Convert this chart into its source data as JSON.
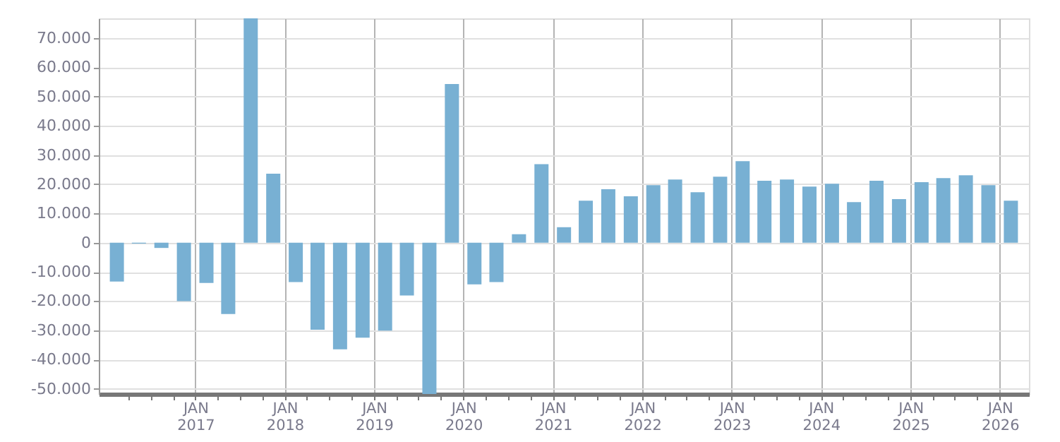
{
  "chart_data": {
    "type": "bar",
    "x": [
      "2016-02-15",
      "2016-05-15",
      "2016-08-15",
      "2016-11-15",
      "2017-02-15",
      "2017-05-15",
      "2017-08-15",
      "2017-11-15",
      "2018-02-15",
      "2018-05-15",
      "2018-08-15",
      "2018-11-15",
      "2019-02-15",
      "2019-05-15",
      "2019-08-15",
      "2019-11-15",
      "2020-02-15",
      "2020-05-15",
      "2020-08-15",
      "2020-11-15",
      "2021-02-15",
      "2021-05-15",
      "2021-08-15",
      "2021-11-15",
      "2022-02-15",
      "2022-05-15",
      "2022-08-15",
      "2022-11-15",
      "2023-02-15",
      "2023-05-15",
      "2023-08-15",
      "2023-11-15",
      "2024-02-15",
      "2024-05-15",
      "2024-08-15",
      "2024-11-15",
      "2025-02-15",
      "2025-05-15",
      "2025-08-15",
      "2025-11-15",
      "2026-02-15"
    ],
    "values": [
      -13300,
      -300,
      -1800,
      -20000,
      -13800,
      -24400,
      76800,
      23600,
      -13500,
      -29800,
      -36500,
      -32500,
      -30100,
      -18100,
      -51800,
      54300,
      -14300,
      -13500,
      2900,
      26900,
      5300,
      14400,
      18300,
      15900,
      19700,
      21600,
      17300,
      22600,
      27900,
      21200,
      21600,
      19200,
      20200,
      13900,
      21200,
      14900,
      20700,
      22100,
      23100,
      19700,
      14400
    ],
    "color": "#78b0d3",
    "ylim": [
      -51800,
      76800
    ],
    "yticks": [
      {
        "value": -50000,
        "label": "-50.000"
      },
      {
        "value": -40000,
        "label": "-40.000"
      },
      {
        "value": -30000,
        "label": "-30.000"
      },
      {
        "value": -20000,
        "label": "-20.000"
      },
      {
        "value": -10000,
        "label": "-10.000"
      },
      0,
      {
        "value": 10000,
        "label": "10.000"
      },
      {
        "value": 20000,
        "label": "20.000"
      },
      {
        "value": 30000,
        "label": "30.000"
      },
      {
        "value": 40000,
        "label": "40.000"
      },
      {
        "value": 50000,
        "label": "50.000"
      },
      {
        "value": 60000,
        "label": "60.000"
      },
      {
        "value": 70000,
        "label": "70.000"
      }
    ],
    "xlim": [
      "2016-01",
      "2026-04"
    ],
    "xticks": [
      {
        "value": "2016-04",
        "label": null
      },
      {
        "value": "2016-07",
        "label": null
      },
      {
        "value": "2016-10",
        "label": null
      },
      {
        "value": "2017-01",
        "label": "JAN\n2017"
      },
      {
        "value": "2017-04",
        "label": null
      },
      {
        "value": "2017-07",
        "label": null
      },
      {
        "value": "2017-10",
        "label": null
      },
      {
        "value": "2018-01",
        "label": "JAN\n2018"
      },
      {
        "value": "2018-04",
        "label": null
      },
      {
        "value": "2018-07",
        "label": null
      },
      {
        "value": "2018-10",
        "label": null
      },
      {
        "value": "2019-01",
        "label": "JAN\n2019"
      },
      {
        "value": "2019-04",
        "label": null
      },
      {
        "value": "2019-07",
        "label": null
      },
      {
        "value": "2019-10",
        "label": null
      },
      {
        "value": "2020-01",
        "label": "JAN\n2020"
      },
      {
        "value": "2020-04",
        "label": null
      },
      {
        "value": "2020-07",
        "label": null
      },
      {
        "value": "2020-10",
        "label": null
      },
      {
        "value": "2021-01",
        "label": "JAN\n2021"
      },
      {
        "value": "2021-04",
        "label": null
      },
      {
        "value": "2021-07",
        "label": null
      },
      {
        "value": "2021-10",
        "label": null
      },
      {
        "value": "2022-01",
        "label": "JAN\n2022"
      },
      {
        "value": "2022-04",
        "label": null
      },
      {
        "value": "2022-07",
        "label": null
      },
      {
        "value": "2022-10",
        "label": null
      },
      {
        "value": "2023-01",
        "label": "JAN\n2023"
      },
      {
        "value": "2023-04",
        "label": null
      },
      {
        "value": "2023-07",
        "label": null
      },
      {
        "value": "2023-10",
        "label": null
      },
      {
        "value": "2024-01",
        "label": "JAN\n2024"
      },
      {
        "value": "2024-04",
        "label": null
      },
      {
        "value": "2024-07",
        "label": null
      },
      {
        "value": "2024-10",
        "label": null
      },
      {
        "value": "2025-01",
        "label": "JAN\n2025"
      },
      {
        "value": "2025-04",
        "label": null
      },
      {
        "value": "2025-07",
        "label": null
      },
      {
        "value": "2025-10",
        "label": null
      },
      {
        "value": "2026-01",
        "label": "JAN\n2026"
      }
    ],
    "grid": true
  }
}
